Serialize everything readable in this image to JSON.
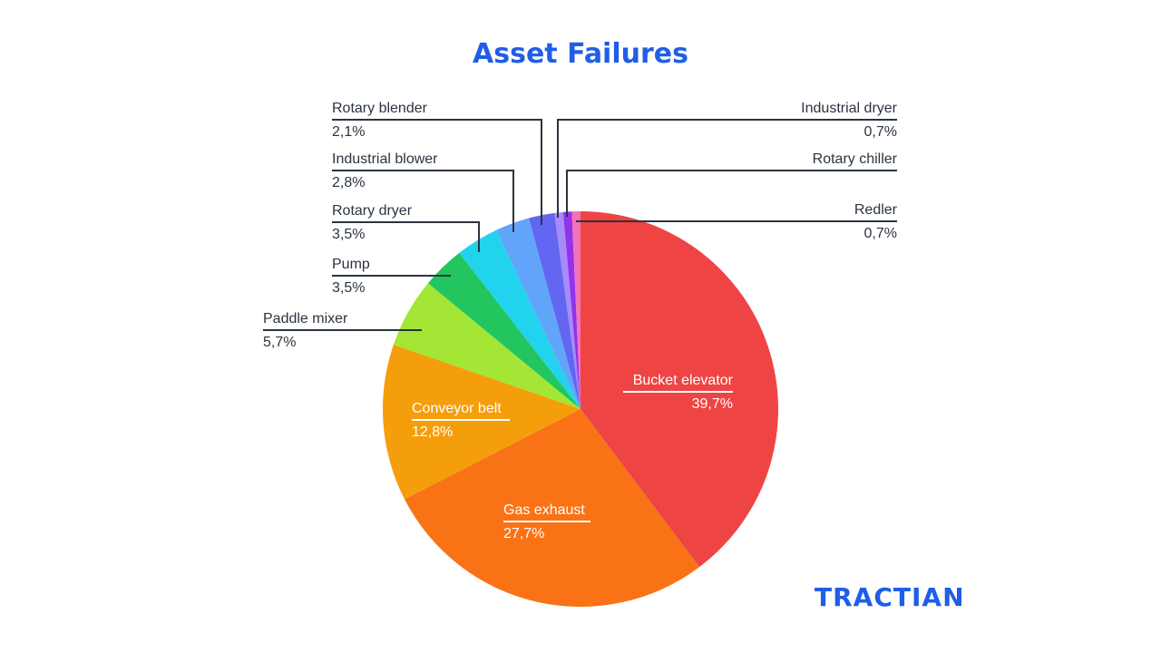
{
  "title": "Asset Failures",
  "brand": "TRACTIAN",
  "colors": {
    "title": "#1f5ee6",
    "label_text": "#2b3440",
    "leader_line": "#2b3440",
    "brand": "#1f5ee6"
  },
  "chart_data": {
    "type": "pie",
    "title": "Asset Failures",
    "start_angle": "12 o'clock, clockwise",
    "slices": [
      {
        "label": "Bucket elevator",
        "value": 39.7,
        "display": "39,7%",
        "color": "#EF4444"
      },
      {
        "label": "Gas exhaust",
        "value": 27.7,
        "display": "27,7%",
        "color": "#F97316"
      },
      {
        "label": "Conveyor belt",
        "value": 12.8,
        "display": "12,8%",
        "color": "#F59E0B"
      },
      {
        "label": "Paddle mixer",
        "value": 5.7,
        "display": "5,7%",
        "color": "#A3E635"
      },
      {
        "label": "Pump",
        "value": 3.5,
        "display": "3,5%",
        "color": "#22C55E"
      },
      {
        "label": "Rotary dryer",
        "value": 3.5,
        "display": "3,5%",
        "color": "#22D3EE"
      },
      {
        "label": "Industrial blower",
        "value": 2.8,
        "display": "2,8%",
        "color": "#60A5FA"
      },
      {
        "label": "Rotary blender",
        "value": 2.1,
        "display": "2,1%",
        "color": "#6366F1"
      },
      {
        "label": "Industrial dryer",
        "value": 0.7,
        "display": "0,7%",
        "color": "#A78BFA"
      },
      {
        "label": "Rotary chiller",
        "value": 0.7,
        "display": "",
        "color": "#9333EA"
      },
      {
        "label": "Redler",
        "value": 0.7,
        "display": "0,7%",
        "color": "#F472B6"
      }
    ]
  },
  "labels": {
    "bucket_elevator": {
      "name": "Bucket elevator",
      "pct": "39,7%"
    },
    "gas_exhaust": {
      "name": "Gas exhaust",
      "pct": "27,7%"
    },
    "conveyor_belt": {
      "name": "Conveyor belt",
      "pct": "12,8%"
    },
    "paddle_mixer": {
      "name": "Paddle mixer",
      "pct": "5,7%"
    },
    "pump": {
      "name": "Pump",
      "pct": "3,5%"
    },
    "rotary_dryer": {
      "name": "Rotary dryer",
      "pct": "3,5%"
    },
    "industrial_blower": {
      "name": "Industrial blower",
      "pct": "2,8%"
    },
    "rotary_blender": {
      "name": "Rotary blender",
      "pct": "2,1%"
    },
    "industrial_dryer": {
      "name": "Industrial dryer",
      "pct": "0,7%"
    },
    "rotary_chiller": {
      "name": "Rotary chiller"
    },
    "redler": {
      "name": "Redler",
      "pct": "0,7%"
    }
  }
}
